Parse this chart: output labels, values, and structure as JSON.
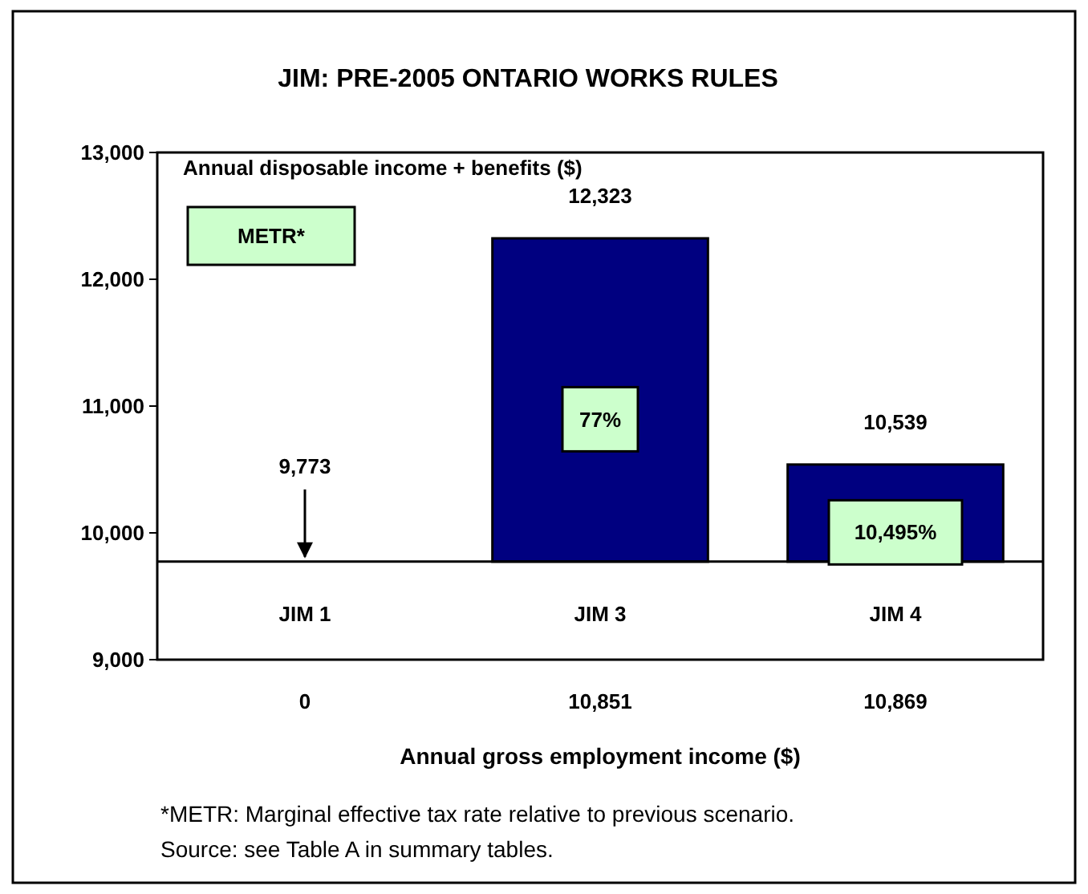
{
  "chart_data": {
    "type": "bar",
    "title": "JIM: PRE-2005 ONTARIO WORKS RULES",
    "ylabel": "Annual disposable income + benefits ($)",
    "xlabel": "Annual gross employment income ($)",
    "categories": [
      "0",
      "10,851",
      "10,869"
    ],
    "base": [
      null,
      9773,
      9773
    ],
    "values": [
      null,
      2550,
      766
    ],
    "value_labels": [
      null,
      "12,323",
      "10,539"
    ],
    "color": "#000080",
    "ylim": [
      9000,
      13000
    ],
    "yticks": [
      {
        "value": 9000,
        "label": "9,000"
      },
      {
        "value": 10000,
        "label": "10,000"
      },
      {
        "value": 11000,
        "label": "11,000"
      },
      {
        "value": 12000,
        "label": "12,000"
      },
      {
        "value": 13000,
        "label": "13,000"
      }
    ],
    "ref_lines": [
      {
        "axis": "y",
        "value": 9773,
        "label": "9,773",
        "color": "#000000"
      }
    ],
    "annotations": [
      "METR*",
      "JIM 1",
      "JIM 3",
      "JIM 4",
      "77%",
      "10,495%",
      "*METR: Marginal effective tax rate relative to previous scenario.",
      "Source: see Table A in summary tables."
    ]
  }
}
